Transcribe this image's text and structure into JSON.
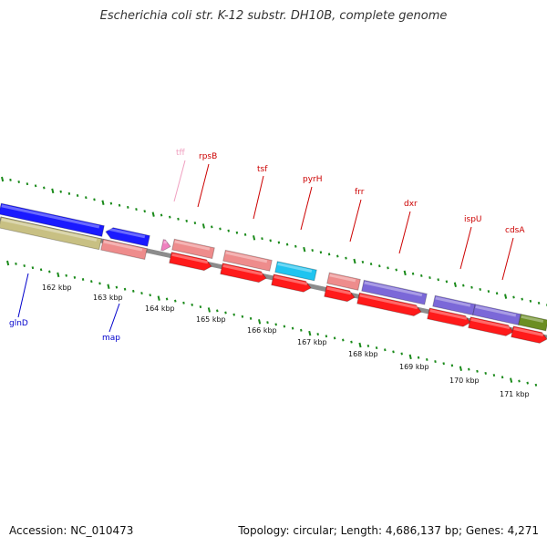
{
  "title": "Escherichia coli str. K-12 substr. DH10B, complete genome",
  "accession": "Accession: NC_010473",
  "summary": "Topology: circular; Length: 4,686,137 bp; Genes: 4,271",
  "colors": {
    "backbone": "#8c8c8c",
    "tick": "#1a8a1a",
    "cds_red": "#ff1a1a",
    "rna_pink": "#ee8c8c",
    "blue": "#1a1aff",
    "olive": "#c8c083",
    "cyan": "#1fc4f0",
    "purple": "#7b68d8",
    "green": "#6b8e23",
    "label_red": "#cc0000",
    "label_blue": "#0000cc",
    "label_pink": "#f0a0c0"
  },
  "kbp_ticks": [
    "162 kbp",
    "163 kbp",
    "164 kbp",
    "165 kbp",
    "166 kbp",
    "167 kbp",
    "168 kbp",
    "169 kbp",
    "170 kbp",
    "171 kbp"
  ],
  "gene_labels_top": [
    "tff",
    "rpsB",
    "tsf",
    "pyrH",
    "frr",
    "dxr",
    "ispU",
    "cdsA"
  ],
  "gene_labels_bottom": [
    "glnD",
    "map"
  ]
}
